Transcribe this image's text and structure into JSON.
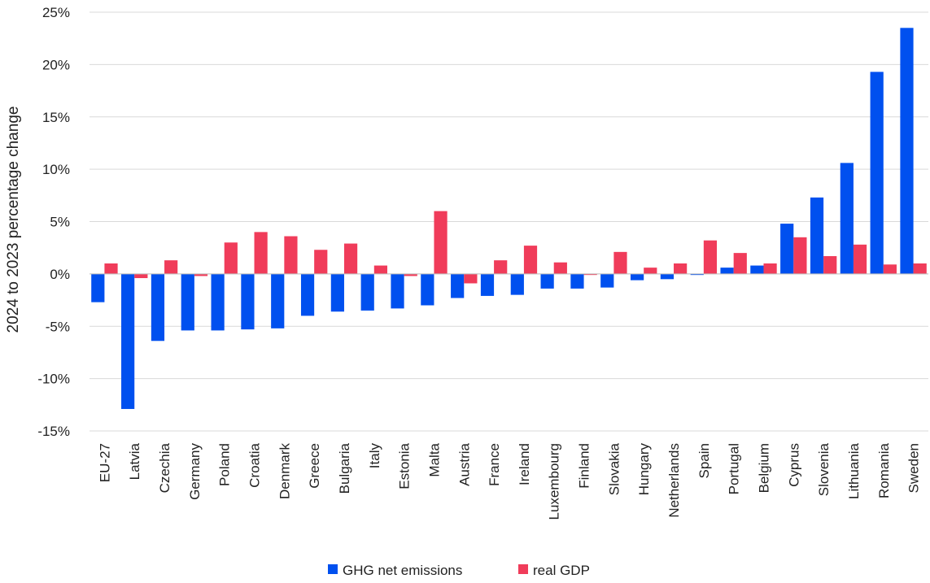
{
  "colors": {
    "ghg": "#0050ef",
    "gdp": "#f03c5a",
    "grid": "#d9d9d9",
    "axis": "#bfbfbf"
  },
  "chart_data": {
    "type": "bar",
    "ylabel": "2024 to 2023 percentage change",
    "ylim": [
      -15,
      25
    ],
    "ytick_step": 5,
    "ytick_labels": [
      "-15%",
      "-10%",
      "-5%",
      "0%",
      "5%",
      "10%",
      "15%",
      "20%",
      "25%"
    ],
    "grid": true,
    "legend_position": "bottom-center",
    "categories": [
      "EU-27",
      "Latvia",
      "Czechia",
      "Germany",
      "Poland",
      "Croatia",
      "Denmark",
      "Greece",
      "Bulgaria",
      "Italy",
      "Estonia",
      "Malta",
      "Austria",
      "France",
      "Ireland",
      "Luxembourg",
      "Finland",
      "Slovakia",
      "Hungary",
      "Netherlands",
      "Spain",
      "Portugal",
      "Belgium",
      "Cyprus",
      "Slovenia",
      "Lithuania",
      "Romania",
      "Sweden"
    ],
    "series": [
      {
        "name": "GHG net emissions",
        "color": "#0050ef",
        "values": [
          -2.7,
          -12.9,
          -6.4,
          -5.4,
          -5.4,
          -5.3,
          -5.2,
          -4.0,
          -3.6,
          -3.5,
          -3.3,
          -3.0,
          -2.3,
          -2.1,
          -2.0,
          -1.4,
          -1.4,
          -1.3,
          -0.6,
          -0.5,
          -0.1,
          0.6,
          0.8,
          4.8,
          7.3,
          10.6,
          19.3,
          23.5
        ]
      },
      {
        "name": "real GDP",
        "color": "#f03c5a",
        "values": [
          1.0,
          -0.4,
          1.3,
          -0.2,
          3.0,
          4.0,
          3.6,
          2.3,
          2.9,
          0.8,
          -0.2,
          6.0,
          -0.9,
          1.3,
          2.7,
          1.1,
          -0.1,
          2.1,
          0.6,
          1.0,
          3.2,
          2.0,
          1.0,
          3.5,
          1.7,
          2.8,
          0.9,
          1.0
        ]
      }
    ]
  }
}
